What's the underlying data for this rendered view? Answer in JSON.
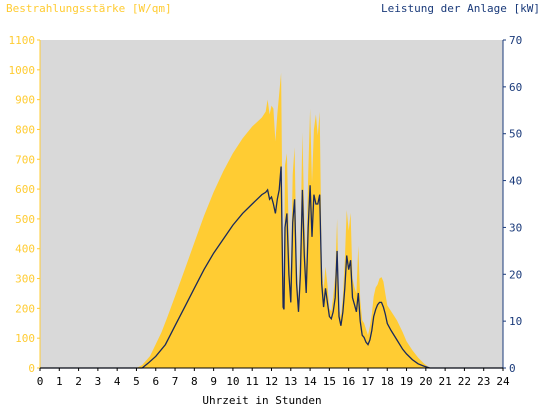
{
  "colors": {
    "irradiance": "#ffcc33",
    "power": "#1a2a5c",
    "plot_background": "#d9d9d9",
    "left_axis_text": "#ffcc33",
    "right_axis_text": "#1a3a7a",
    "bottom_axis_text": "#000000"
  },
  "chart_data": {
    "type": "area",
    "left_title": "Bestrahlungsstärke [W/qm]",
    "right_title": "Leistung der Anlage [kW]",
    "xlabel": "Uhrzeit in Stunden",
    "xlim": [
      0,
      24
    ],
    "x_ticks": [
      "0",
      "1",
      "2",
      "3",
      "4",
      "5",
      "6",
      "7",
      "8",
      "9",
      "10",
      "11",
      "12",
      "13",
      "14",
      "15",
      "16",
      "17",
      "18",
      "19",
      "20",
      "21",
      "22",
      "23",
      "24"
    ],
    "ylim_left": [
      0,
      1100
    ],
    "y_ticks_left": [
      "0",
      "100",
      "200",
      "300",
      "400",
      "500",
      "600",
      "700",
      "800",
      "900",
      "1000",
      "1100"
    ],
    "ylim_right": [
      0,
      70
    ],
    "y_ticks_right": [
      "0",
      "10",
      "20",
      "30",
      "40",
      "50",
      "60",
      "70"
    ],
    "grid": false,
    "series": [
      {
        "name": "Bestrahlungsstärke [W/qm]",
        "axis": "left",
        "kind": "area",
        "points": [
          [
            0,
            0
          ],
          [
            5,
            0
          ],
          [
            5.3,
            10
          ],
          [
            5.7,
            40
          ],
          [
            6,
            80
          ],
          [
            6.3,
            120
          ],
          [
            6.6,
            170
          ],
          [
            7,
            240
          ],
          [
            7.5,
            330
          ],
          [
            8,
            420
          ],
          [
            8.5,
            510
          ],
          [
            9,
            590
          ],
          [
            9.5,
            660
          ],
          [
            10,
            720
          ],
          [
            10.5,
            770
          ],
          [
            11,
            810
          ],
          [
            11.5,
            840
          ],
          [
            11.7,
            860
          ],
          [
            11.8,
            900
          ],
          [
            11.9,
            850
          ],
          [
            12.0,
            880
          ],
          [
            12.1,
            870
          ],
          [
            12.2,
            760
          ],
          [
            12.3,
            850
          ],
          [
            12.4,
            920
          ],
          [
            12.5,
            990
          ],
          [
            12.55,
            650
          ],
          [
            12.6,
            310
          ],
          [
            12.65,
            300
          ],
          [
            12.7,
            680
          ],
          [
            12.8,
            720
          ],
          [
            12.9,
            430
          ],
          [
            13.0,
            300
          ],
          [
            13.1,
            650
          ],
          [
            13.2,
            740
          ],
          [
            13.3,
            350
          ],
          [
            13.4,
            230
          ],
          [
            13.5,
            420
          ],
          [
            13.6,
            790
          ],
          [
            13.7,
            500
          ],
          [
            13.8,
            340
          ],
          [
            13.9,
            650
          ],
          [
            14.0,
            870
          ],
          [
            14.1,
            620
          ],
          [
            14.2,
            800
          ],
          [
            14.3,
            850
          ],
          [
            14.4,
            780
          ],
          [
            14.5,
            860
          ],
          [
            14.6,
            350
          ],
          [
            14.7,
            260
          ],
          [
            14.8,
            340
          ],
          [
            14.9,
            280
          ],
          [
            15.0,
            200
          ],
          [
            15.1,
            190
          ],
          [
            15.2,
            240
          ],
          [
            15.3,
            310
          ],
          [
            15.4,
            500
          ],
          [
            15.5,
            200
          ],
          [
            15.6,
            170
          ],
          [
            15.7,
            240
          ],
          [
            15.8,
            360
          ],
          [
            15.9,
            530
          ],
          [
            16.0,
            460
          ],
          [
            16.1,
            520
          ],
          [
            16.2,
            300
          ],
          [
            16.3,
            270
          ],
          [
            16.4,
            250
          ],
          [
            16.5,
            410
          ],
          [
            16.6,
            230
          ],
          [
            16.7,
            160
          ],
          [
            16.8,
            150
          ],
          [
            16.9,
            130
          ],
          [
            17.0,
            110
          ],
          [
            17.1,
            140
          ],
          [
            17.2,
            180
          ],
          [
            17.3,
            240
          ],
          [
            17.4,
            270
          ],
          [
            17.5,
            280
          ],
          [
            17.6,
            300
          ],
          [
            17.7,
            305
          ],
          [
            17.8,
            290
          ],
          [
            17.9,
            250
          ],
          [
            18.0,
            210
          ],
          [
            18.2,
            190
          ],
          [
            18.5,
            160
          ],
          [
            18.8,
            120
          ],
          [
            19.0,
            90
          ],
          [
            19.3,
            60
          ],
          [
            19.6,
            35
          ],
          [
            19.9,
            15
          ],
          [
            20.1,
            5
          ],
          [
            20.3,
            0
          ],
          [
            24,
            0
          ]
        ]
      },
      {
        "name": "Leistung der Anlage [kW]",
        "axis": "right",
        "kind": "line",
        "points": [
          [
            0,
            0
          ],
          [
            5.3,
            0
          ],
          [
            5.6,
            1
          ],
          [
            6,
            2.5
          ],
          [
            6.5,
            5
          ],
          [
            7,
            9
          ],
          [
            7.5,
            13
          ],
          [
            8,
            17
          ],
          [
            8.5,
            21
          ],
          [
            9,
            24.5
          ],
          [
            9.5,
            27.5
          ],
          [
            10,
            30.5
          ],
          [
            10.5,
            33
          ],
          [
            11,
            35
          ],
          [
            11.5,
            37
          ],
          [
            11.7,
            37.5
          ],
          [
            11.8,
            38
          ],
          [
            11.9,
            36
          ],
          [
            12.0,
            36.5
          ],
          [
            12.1,
            35
          ],
          [
            12.2,
            33
          ],
          [
            12.3,
            36
          ],
          [
            12.4,
            38
          ],
          [
            12.5,
            43
          ],
          [
            12.55,
            28
          ],
          [
            12.6,
            13
          ],
          [
            12.65,
            12.5
          ],
          [
            12.7,
            30
          ],
          [
            12.8,
            33
          ],
          [
            12.9,
            20
          ],
          [
            13.0,
            14
          ],
          [
            13.1,
            31
          ],
          [
            13.2,
            36
          ],
          [
            13.3,
            18
          ],
          [
            13.4,
            12
          ],
          [
            13.5,
            20
          ],
          [
            13.6,
            38
          ],
          [
            13.7,
            24
          ],
          [
            13.8,
            16
          ],
          [
            13.9,
            30
          ],
          [
            14.0,
            39
          ],
          [
            14.1,
            28
          ],
          [
            14.2,
            37
          ],
          [
            14.3,
            35
          ],
          [
            14.4,
            35
          ],
          [
            14.5,
            37
          ],
          [
            14.6,
            18
          ],
          [
            14.7,
            13
          ],
          [
            14.8,
            17
          ],
          [
            14.9,
            14
          ],
          [
            15.0,
            11
          ],
          [
            15.1,
            10.5
          ],
          [
            15.2,
            12
          ],
          [
            15.3,
            15
          ],
          [
            15.4,
            25
          ],
          [
            15.5,
            11
          ],
          [
            15.6,
            9
          ],
          [
            15.7,
            12
          ],
          [
            15.8,
            17
          ],
          [
            15.9,
            24
          ],
          [
            16.0,
            21
          ],
          [
            16.1,
            23
          ],
          [
            16.2,
            15
          ],
          [
            16.3,
            13.5
          ],
          [
            16.4,
            12
          ],
          [
            16.5,
            16
          ],
          [
            16.6,
            10
          ],
          [
            16.7,
            7
          ],
          [
            16.8,
            6.5
          ],
          [
            16.9,
            5.5
          ],
          [
            17.0,
            5
          ],
          [
            17.1,
            6
          ],
          [
            17.2,
            8
          ],
          [
            17.3,
            11
          ],
          [
            17.4,
            12.5
          ],
          [
            17.5,
            13.5
          ],
          [
            17.6,
            14
          ],
          [
            17.7,
            14
          ],
          [
            17.8,
            13
          ],
          [
            17.9,
            11.5
          ],
          [
            18.0,
            9.5
          ],
          [
            18.2,
            8
          ],
          [
            18.5,
            6
          ],
          [
            18.8,
            4
          ],
          [
            19.0,
            3
          ],
          [
            19.3,
            1.8
          ],
          [
            19.6,
            0.9
          ],
          [
            19.9,
            0.4
          ],
          [
            20.2,
            0
          ],
          [
            24,
            0
          ]
        ]
      }
    ]
  }
}
